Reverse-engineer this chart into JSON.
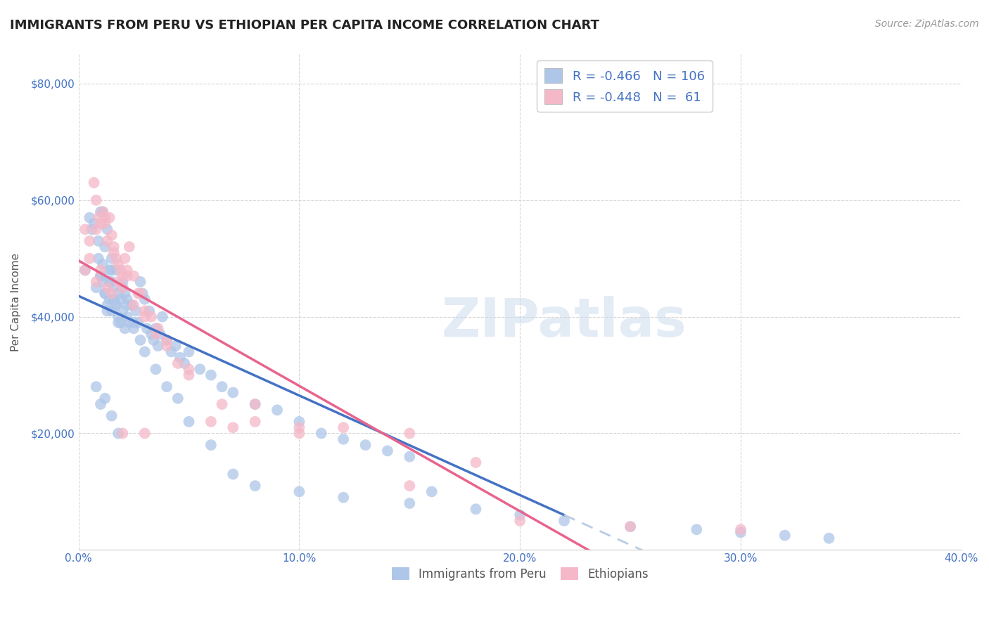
{
  "title": "IMMIGRANTS FROM PERU VS ETHIOPIAN PER CAPITA INCOME CORRELATION CHART",
  "source": "Source: ZipAtlas.com",
  "ylabel": "Per Capita Income",
  "xlim": [
    0.0,
    0.4
  ],
  "ylim": [
    0,
    85000
  ],
  "xticks": [
    0.0,
    0.1,
    0.2,
    0.3,
    0.4
  ],
  "xtick_labels": [
    "0.0%",
    "10.0%",
    "20.0%",
    "30.0%",
    "40.0%"
  ],
  "yticks": [
    20000,
    40000,
    60000,
    80000
  ],
  "ytick_labels": [
    "$20,000",
    "$40,000",
    "$60,000",
    "$80,000"
  ],
  "watermark": "ZIPatlas",
  "legend_entries": [
    {
      "label": "Immigrants from Peru",
      "color": "#aec6e8",
      "R": "-0.466",
      "N": "106"
    },
    {
      "label": "Ethiopians",
      "color": "#f4b8c8",
      "R": "-0.448",
      "N": " 61"
    }
  ],
  "blue_color": "#4472c4",
  "pink_color": "#e8648c",
  "scatter_blue": "#aec6e8",
  "scatter_pink": "#f4b8c8",
  "trend_blue": "#4472c4",
  "trend_pink": "#e8648c",
  "trend_blue_ext": "#b8cce4",
  "background_color": "#ffffff",
  "grid_color": "#cccccc",
  "title_fontsize": 13,
  "axis_label_fontsize": 11,
  "tick_fontsize": 11,
  "peru_x": [
    0.003,
    0.005,
    0.006,
    0.007,
    0.008,
    0.009,
    0.01,
    0.01,
    0.011,
    0.011,
    0.012,
    0.012,
    0.013,
    0.013,
    0.014,
    0.014,
    0.015,
    0.015,
    0.015,
    0.016,
    0.016,
    0.017,
    0.017,
    0.018,
    0.018,
    0.019,
    0.019,
    0.02,
    0.02,
    0.021,
    0.021,
    0.022,
    0.022,
    0.023,
    0.024,
    0.025,
    0.026,
    0.027,
    0.028,
    0.029,
    0.03,
    0.031,
    0.032,
    0.033,
    0.034,
    0.035,
    0.036,
    0.037,
    0.038,
    0.04,
    0.042,
    0.044,
    0.046,
    0.048,
    0.05,
    0.055,
    0.06,
    0.065,
    0.07,
    0.08,
    0.09,
    0.1,
    0.11,
    0.12,
    0.13,
    0.14,
    0.15,
    0.16,
    0.01,
    0.011,
    0.012,
    0.013,
    0.014,
    0.015,
    0.016,
    0.017,
    0.018,
    0.009,
    0.02,
    0.022,
    0.025,
    0.028,
    0.03,
    0.035,
    0.04,
    0.045,
    0.05,
    0.06,
    0.07,
    0.08,
    0.1,
    0.12,
    0.15,
    0.18,
    0.2,
    0.22,
    0.25,
    0.28,
    0.3,
    0.32,
    0.34,
    0.01,
    0.012,
    0.015,
    0.018,
    0.008
  ],
  "peru_y": [
    48000,
    57000,
    55000,
    56000,
    45000,
    50000,
    47000,
    58000,
    58000,
    46000,
    44000,
    52000,
    55000,
    42000,
    48000,
    43000,
    46000,
    41000,
    50000,
    43000,
    45000,
    42000,
    48000,
    40000,
    44000,
    43000,
    39000,
    41000,
    46000,
    44000,
    38000,
    43000,
    40000,
    39000,
    42000,
    38000,
    41000,
    39000,
    46000,
    44000,
    43000,
    38000,
    41000,
    37000,
    36000,
    38000,
    35000,
    37000,
    40000,
    36000,
    34000,
    35000,
    33000,
    32000,
    34000,
    31000,
    30000,
    28000,
    27000,
    25000,
    24000,
    22000,
    20000,
    19000,
    18000,
    17000,
    16000,
    10000,
    47000,
    49000,
    44000,
    41000,
    46000,
    48000,
    43000,
    42000,
    39000,
    53000,
    45000,
    42000,
    39000,
    36000,
    34000,
    31000,
    28000,
    26000,
    22000,
    18000,
    13000,
    11000,
    10000,
    9000,
    8000,
    7000,
    6000,
    5000,
    4000,
    3500,
    3000,
    2500,
    2000,
    25000,
    26000,
    23000,
    20000,
    28000
  ],
  "ethiopian_x": [
    0.003,
    0.005,
    0.007,
    0.008,
    0.009,
    0.01,
    0.011,
    0.012,
    0.013,
    0.014,
    0.015,
    0.016,
    0.017,
    0.018,
    0.019,
    0.02,
    0.021,
    0.022,
    0.023,
    0.025,
    0.027,
    0.03,
    0.033,
    0.036,
    0.04,
    0.045,
    0.05,
    0.06,
    0.07,
    0.08,
    0.1,
    0.12,
    0.15,
    0.18,
    0.013,
    0.015,
    0.018,
    0.02,
    0.025,
    0.03,
    0.035,
    0.008,
    0.012,
    0.016,
    0.022,
    0.028,
    0.04,
    0.05,
    0.065,
    0.08,
    0.1,
    0.15,
    0.2,
    0.25,
    0.3,
    0.003,
    0.005,
    0.008,
    0.01,
    0.02,
    0.03
  ],
  "ethiopian_y": [
    48000,
    53000,
    63000,
    55000,
    57000,
    56000,
    58000,
    56000,
    53000,
    57000,
    54000,
    52000,
    50000,
    49000,
    48000,
    47000,
    50000,
    47000,
    52000,
    47000,
    44000,
    41000,
    40000,
    38000,
    35000,
    32000,
    30000,
    22000,
    21000,
    25000,
    20000,
    21000,
    20000,
    15000,
    45000,
    44000,
    46000,
    45000,
    42000,
    40000,
    37000,
    60000,
    57000,
    51000,
    48000,
    44000,
    36000,
    31000,
    25000,
    22000,
    21000,
    11000,
    5000,
    4000,
    3500,
    55000,
    50000,
    46000,
    48000,
    20000,
    20000
  ]
}
